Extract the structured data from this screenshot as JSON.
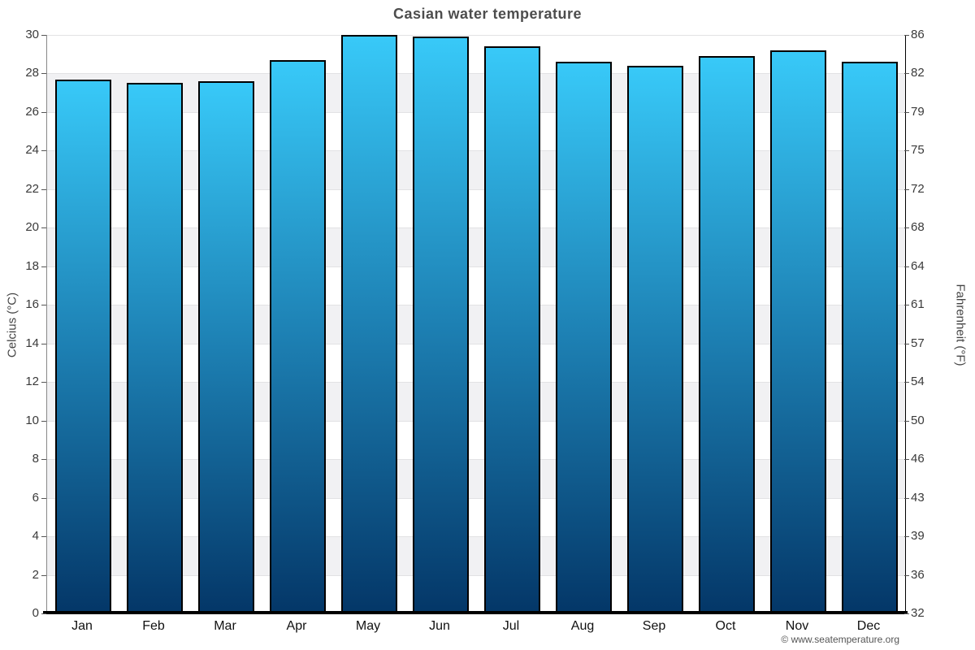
{
  "title": "Casian water temperature",
  "footer": {
    "text": "© www.seatemperature.org"
  },
  "chart_data": {
    "type": "bar",
    "title": "Casian water temperature",
    "categories": [
      "Jan",
      "Feb",
      "Mar",
      "Apr",
      "May",
      "Jun",
      "Jul",
      "Aug",
      "Sep",
      "Oct",
      "Nov",
      "Dec"
    ],
    "values": [
      27.7,
      27.5,
      27.6,
      28.7,
      30.0,
      29.9,
      29.4,
      28.6,
      28.4,
      28.9,
      29.2,
      28.6
    ],
    "unit": "°C",
    "ylabel_left": "Celcius (°C)",
    "ylabel_right": "Fahrenheit (°F)",
    "xlabel": "",
    "ylim": [
      0,
      30
    ],
    "ytick_step": 2,
    "yticks_celsius": [
      30,
      28,
      26,
      24,
      22,
      20,
      18,
      16,
      14,
      12,
      10,
      8,
      6,
      4,
      2,
      0
    ],
    "yticks_fahrenheit": [
      86,
      82,
      79,
      75,
      72,
      68,
      64,
      61,
      57,
      54,
      50,
      46,
      43,
      39,
      36,
      32
    ],
    "legend": "none",
    "grid": "horizontal gridlines every 2°C with alternating shaded bands",
    "colors": {
      "bar_gradient_top": "#38c9f8",
      "bar_gradient_mid": "#1d80b3",
      "bar_gradient_bottom": "#043768",
      "bar_border": "#000000",
      "band_light": "#ffffff",
      "band_shaded": "#f1f1f3",
      "gridline": "#e2e2e4",
      "title_text": "#4d4d4d",
      "axis_text": "#3a3a3a"
    }
  }
}
